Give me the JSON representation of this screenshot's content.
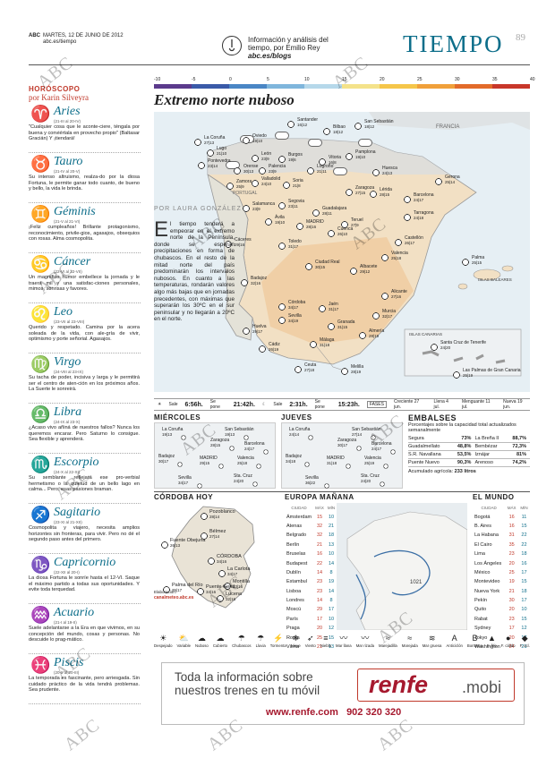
{
  "header": {
    "paper": "ABC",
    "date": "MARTES, 12 DE JUNIO DE 2012",
    "site": "abc.es/tiempo",
    "desc": "Información y análisis del tiempo, por Emilio Rey",
    "blog": "abc.es/blogs",
    "title": "TIEMPO",
    "page": "89"
  },
  "horoscope": {
    "heading": "HORÓSCOPO",
    "author": "por Karin Silveyra",
    "signs": [
      {
        "name": "Aries",
        "glyph": "♈",
        "dates": "(21-III al 20-IV)",
        "text": "\"Cualquier cosa que le aconte-ciere, téngala por buena y conviértala en provecho propio\" (Baltasar Gracián) Y ¡tiendará!"
      },
      {
        "name": "Tauro",
        "glyph": "♉",
        "dates": "(21-IV al 20-V)",
        "text": "Su intenso altruismo, realza-do por la diosa Fortuna, le permite ganar todo cuanto, de bueno y bello, la vida le brinda."
      },
      {
        "name": "Géminis",
        "glyph": "♊",
        "dates": "(21-V al 21-VI)",
        "text": "¡Feliz cumpleaños! Brillante protagonismo, reconocimiento, privile-gios, agasajos, obsequios con rosas. Alma cosmopolita."
      },
      {
        "name": "Cáncer",
        "glyph": "♋",
        "dates": "(22-VI al 22-VII)",
        "text": "Un magnífico humor embellece la jornada y le traerá mil y una satisfac-ciones personales, mimos, sonrisas y favores."
      },
      {
        "name": "Leo",
        "glyph": "♌",
        "dates": "(23-VII al 23-VIII)",
        "text": "Querido y respetado. Camina por la acera soleada de la vida, con ale-gría de vivir, optimismo y porte señorial. Agasajos."
      },
      {
        "name": "Virgo",
        "glyph": "♍",
        "dates": "(24-VIII al 23-IX)",
        "text": "Su tacha de poder, incisiva y larga y le permitirá ser el centro de aten-ción en los próximos años. La Suerte le sonreirá."
      },
      {
        "name": "Libra",
        "glyph": "♎",
        "dates": "(24-IX al 23-X)",
        "text": "¿Acaso vivo añiná de nuestros fallos? Nunca los queremos encarar. Pero Saturno lo consigue. Sea flexible y aprenderá."
      },
      {
        "name": "Escorpio",
        "glyph": "♏",
        "dates": "(24-X al 22-XI)",
        "text": "Su semblante reflejará ese pro-verbial hermetismo o la quietud de un bello lago en calma... Pero, esas pasiones braman."
      },
      {
        "name": "Sagitario",
        "glyph": "♐",
        "dates": "(23-XI al 21-XII)",
        "text": "Cosmopolita y viajero, necesita amplios horizontes sin fronteras, para vivir. Pero no dé el segundo paso antes del primero."
      },
      {
        "name": "Capricornio",
        "glyph": "♑",
        "dates": "(22-XII al 20-I)",
        "text": "La diosa Fortuna le sonríe hasta el 12-VI. Saque el máximo partido a todas sus oportunidades. Y evite toda terquedad."
      },
      {
        "name": "Acuario",
        "glyph": "♒",
        "dates": "(21-I al 19-II)",
        "text": "Suele adelantarse a la Era en que vivimos, en su concepción del mundo, cosas y personas. No descuide lo prag-mático."
      },
      {
        "name": "Piscis",
        "glyph": "♓",
        "dates": "(20-II al 20-III)",
        "text": "La temporada es fascinante, pero arriesgada. Sin cuidado práctico de la vida tendrá problemas. Sea prudente."
      }
    ]
  },
  "legend": {
    "labels": [
      "-10",
      "-5",
      "0",
      "5",
      "10",
      "15",
      "20",
      "25",
      "30",
      "35",
      "40"
    ],
    "colors": [
      "#5b3a8c",
      "#3a5aa8",
      "#4a86c5",
      "#7fb6dc",
      "#b6d8ea",
      "#f4e28a",
      "#f5c64a",
      "#f0a03a",
      "#e26b2a",
      "#c8372a"
    ]
  },
  "main": {
    "title": "Extremo norte nuboso",
    "byline": "POR LAURA GONZÁLEZ",
    "article_first": "E",
    "article": "l tiempo tenderá a empeorar en el extremo norte de la Península, donde se esperan precipitaciones en forma de chubascos. En el resto de la mitad norte del país predominarán los intervalos nubosos. En cuanto a las temperaturas, rondarán valores algo más bajas que en jornadas precedentes, con máximas que superarán los 30ºC en el sur peninsular y no llegarán a 20ºC en el norte."
  },
  "map": {
    "france": "FRANCIA",
    "portugal": "PORTUGAL",
    "baleares": "ISLAS BALEARES",
    "canarias": "ISLAS CANARIAS",
    "cities": [
      {
        "n": "La Coruña",
        "t": "27|13"
      },
      {
        "n": "Oviedo",
        "t": "19|10"
      },
      {
        "n": "Santander",
        "t": "16|12"
      },
      {
        "n": "Bilbao",
        "t": "18|12"
      },
      {
        "n": "San Sebastián",
        "t": "18|12"
      },
      {
        "n": "Lugo",
        "t": "21|10"
      },
      {
        "n": "León",
        "t": "23|9"
      },
      {
        "n": "Burgos",
        "t": "19|6"
      },
      {
        "n": "Vitoria",
        "t": "16|8"
      },
      {
        "n": "Pamplona",
        "t": "19|10"
      },
      {
        "n": "Pontevedra",
        "t": "23|14"
      },
      {
        "n": "Orense",
        "t": "30|13"
      },
      {
        "n": "Palencia",
        "t": "23|9"
      },
      {
        "n": "Logroño",
        "t": "21|11"
      },
      {
        "n": "Huesca",
        "t": "24|13"
      },
      {
        "n": "Gerona",
        "t": "25|14"
      },
      {
        "n": "Zamora",
        "t": "25|9"
      },
      {
        "n": "Valladolid",
        "t": "24|10"
      },
      {
        "n": "Soria",
        "t": "21|8"
      },
      {
        "n": "Zaragoza",
        "t": "27|15"
      },
      {
        "n": "Lérida",
        "t": "28|15"
      },
      {
        "n": "Barcelona",
        "t": "24|17"
      },
      {
        "n": "Salamanca",
        "t": "23|9"
      },
      {
        "n": "Segovia",
        "t": "23|11"
      },
      {
        "n": "Guadalajara",
        "t": "28|11"
      },
      {
        "n": "Tarragona",
        "t": "24|18"
      },
      {
        "n": "Ávila",
        "t": "19|10"
      },
      {
        "n": "MADRID",
        "t": "28|16"
      },
      {
        "n": "Teruel",
        "t": "27|9"
      },
      {
        "n": "Cuenca",
        "t": "26|10"
      },
      {
        "n": "Castellón",
        "t": "26|17"
      },
      {
        "n": "Cáceres",
        "t": "29|16"
      },
      {
        "n": "Toledo",
        "t": "31|17"
      },
      {
        "n": "Palma",
        "t": "25|15"
      },
      {
        "n": "Valencia",
        "t": "25|18"
      },
      {
        "n": "Ciudad Real",
        "t": "30|15"
      },
      {
        "n": "Albacete",
        "t": "29|12"
      },
      {
        "n": "Badajoz",
        "t": "32|16"
      },
      {
        "n": "Alicante",
        "t": "27|16"
      },
      {
        "n": "Córdoba",
        "t": "34|17"
      },
      {
        "n": "Jaén",
        "t": "31|17"
      },
      {
        "n": "Murcia",
        "t": "32|17"
      },
      {
        "n": "Sevilla",
        "t": "34|19"
      },
      {
        "n": "Granada",
        "t": "31|15"
      },
      {
        "n": "Huelva",
        "t": "29|17"
      },
      {
        "n": "Almería",
        "t": "28|19"
      },
      {
        "n": "Málaga",
        "t": "31|18"
      },
      {
        "n": "Cádiz",
        "t": "26|19"
      },
      {
        "n": "Ceuta",
        "t": "27|18"
      },
      {
        "n": "Melilla",
        "t": "28|19"
      },
      {
        "n": "Santa Cruz de Tenerife",
        "t": "24|20"
      },
      {
        "n": "Las Palmas de Gran Canaria",
        "t": "25|19"
      }
    ]
  },
  "sunbar": {
    "sale_l": "Sale",
    "sale": "6:56h.",
    "pone_l": "Se pone",
    "pone": "21:42h.",
    "lsale_l": "Sale",
    "lsale": "2:31h.",
    "lpone_l": "Se pone",
    "lpone": "15:23h.",
    "fases": "FASES",
    "f1": "Creciente 27 jun.",
    "f2": "Llena 4 jul.",
    "f3": "Menguante 11 jul.",
    "f4": "Nueva 19 jun."
  },
  "miercoles": {
    "title": "MIÉRCOLES",
    "cities": [
      {
        "n": "La Coruña",
        "t": "19|13"
      },
      {
        "n": "San Sebastián",
        "t": "19|13"
      },
      {
        "n": "Zaragoza",
        "t": "28|15"
      },
      {
        "n": "Barcelona",
        "t": "24|17"
      },
      {
        "n": "Badajoz",
        "t": "30|17"
      },
      {
        "n": "MADRID",
        "t": "29|15"
      },
      {
        "n": "Valencia",
        "t": "25|18"
      },
      {
        "n": "Sevilla",
        "t": "34|17"
      },
      {
        "n": "Sta. Cruz",
        "t": "24|20"
      }
    ]
  },
  "jueves": {
    "title": "JUEVES",
    "cities": [
      {
        "n": "La Coruña",
        "t": "24|14"
      },
      {
        "n": "San Sebastián",
        "t": "27|14"
      },
      {
        "n": "Zaragoza",
        "t": "30|17"
      },
      {
        "n": "Barcelona",
        "t": "24|17"
      },
      {
        "n": "Badajoz",
        "t": "34|18"
      },
      {
        "n": "MADRID",
        "t": "31|18"
      },
      {
        "n": "Valencia",
        "t": "25|19"
      },
      {
        "n": "Sevilla",
        "t": "36|22"
      },
      {
        "n": "Sta. Cruz",
        "t": "24|20"
      }
    ]
  },
  "embalses": {
    "title": "EMBALSES",
    "sub": "Porcentajes sobre la capacidad total actualizados semanalmente",
    "rows": [
      [
        "Segura",
        "73%",
        "La Breña II",
        "88,7%"
      ],
      [
        "Guadalmellato",
        "48,8%",
        "Bembézar",
        "72,3%"
      ],
      [
        "S.R. Navallana",
        "53,5%",
        "Iznájar",
        "81%"
      ],
      [
        "Puente Nuevo",
        "90,3%",
        "Arenoso",
        "74,2%"
      ]
    ],
    "acum_l": "Acumulado agrícola:",
    "acum": "233 litros"
  },
  "cordoba": {
    "title": "CÓRDOBA HOY",
    "cities": [
      {
        "n": "Pozoblanco",
        "t": "28|14"
      },
      {
        "n": "Fuente Obejuna",
        "t": "26|13"
      },
      {
        "n": "Bélmez",
        "t": "27|14"
      },
      {
        "n": "CÓRDOBA",
        "t": "34|16"
      },
      {
        "n": "La Carlota",
        "t": "34|17"
      },
      {
        "n": "Montilla",
        "t": "33|16"
      },
      {
        "n": "Palma del Río",
        "t": "35|17"
      },
      {
        "n": "Puente Genil",
        "t": "34|16"
      },
      {
        "n": "Lucena",
        "t": "32|16"
      }
    ],
    "credit": "Elaboración:",
    "credit2": "canalmeteo.abc.es"
  },
  "europa": {
    "title": "EUROPA MAÑANA",
    "h": [
      "CIUDAD",
      "MÁX",
      "MÍN"
    ],
    "rows": [
      [
        "Ámsterdam",
        "15",
        "10"
      ],
      [
        "Atenas",
        "32",
        "21"
      ],
      [
        "Belgrado",
        "32",
        "18"
      ],
      [
        "Berlín",
        "21",
        "13"
      ],
      [
        "Bruselas",
        "16",
        "10"
      ],
      [
        "Budapest",
        "22",
        "14"
      ],
      [
        "Dublín",
        "14",
        "8"
      ],
      [
        "Estambul",
        "23",
        "19"
      ],
      [
        "Lisboa",
        "23",
        "14"
      ],
      [
        "Londres",
        "14",
        "8"
      ],
      [
        "Moscú",
        "29",
        "17"
      ],
      [
        "París",
        "17",
        "10"
      ],
      [
        "Praga",
        "20",
        "12"
      ],
      [
        "Roma",
        "25",
        "15"
      ],
      [
        "Viena",
        "21",
        "13"
      ]
    ]
  },
  "mundo": {
    "title": "EL MUNDO",
    "h": [
      "CIUDAD",
      "MÁX",
      "MÍN"
    ],
    "rows": [
      [
        "Bogotá",
        "16",
        "11"
      ],
      [
        "B. Aires",
        "16",
        "15"
      ],
      [
        "La Habana",
        "31",
        "22"
      ],
      [
        "El Cairo",
        "35",
        "22"
      ],
      [
        "Lima",
        "23",
        "18"
      ],
      [
        "Los Ángeles",
        "20",
        "16"
      ],
      [
        "México",
        "25",
        "17"
      ],
      [
        "Montevideo",
        "19",
        "15"
      ],
      [
        "Nueva York",
        "21",
        "18"
      ],
      [
        "Pekín",
        "30",
        "17"
      ],
      [
        "Quito",
        "20",
        "10"
      ],
      [
        "Rabat",
        "23",
        "15"
      ],
      [
        "Sydney",
        "17",
        "12"
      ],
      [
        "Tokyo",
        "20",
        "17"
      ],
      [
        "Washington",
        "24",
        "21"
      ]
    ]
  },
  "symbols": [
    "Despejado",
    "Variable",
    "Nuboso",
    "Cubierto",
    "Chubascos",
    "Lluvia",
    "Tormenta",
    "Nieve",
    "Viento",
    "Niebla",
    "Mar llana",
    "Mar rizada",
    "Marejadilla",
    "Marejada",
    "Mar gruesa",
    "Anticiclón",
    "Borrasca",
    "F. frío",
    "F. cálido",
    "F. ocl."
  ],
  "symbol_icons": [
    "☀",
    "⛅",
    "☁",
    "☁",
    "☂",
    "☂",
    "⚡",
    "❄",
    "➶",
    "≡",
    "〰",
    "〰",
    "≈",
    "≈",
    "≋",
    "A",
    "B",
    "▲",
    "●",
    "◆"
  ],
  "ad": {
    "text": "Toda la información sobre nuestros trenes en tu móvil",
    "logo": "renfe",
    "mobi": ".mobi",
    "url": "www.renfe.com",
    "phone": "902 320 320"
  },
  "watermark": "ABC"
}
